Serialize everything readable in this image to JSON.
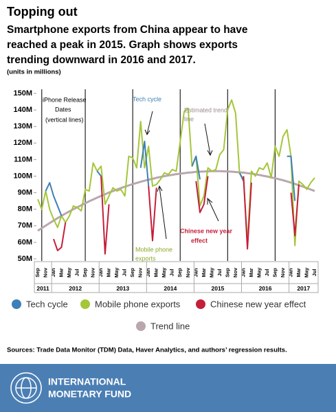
{
  "chart_data": {
    "type": "line",
    "title": "Topping out",
    "subtitle": [
      "Smartphone exports from China appear to have",
      "reached a peak in 2015. Graph shows exports",
      "trending downward in 2016 and 2017."
    ],
    "units_note": "(units in millions)",
    "categories": [
      "Sep",
      null,
      "Nov",
      null,
      "Jan",
      null,
      "Mar",
      null,
      "May",
      null,
      "Jul",
      null,
      "Sep",
      null,
      "Nov",
      null,
      "Jan",
      null,
      "Mar",
      null,
      "May",
      null,
      "Jul",
      null,
      "Sep",
      null,
      "Nov",
      null,
      "Jan",
      null,
      "Mar",
      null,
      "May",
      null,
      "Jul",
      null,
      "Sep",
      null,
      "Nov",
      null,
      "Jan",
      null,
      "Mar",
      null,
      "May",
      null,
      "Jul",
      null,
      "Sep",
      null,
      "Nov",
      null,
      "Jan",
      null,
      "Mar",
      null,
      "May",
      null,
      "Jul",
      null,
      "Sep",
      null,
      "Nov",
      null,
      "Jan",
      null,
      "Mar",
      null,
      "May",
      null,
      "Jul"
    ],
    "years": [
      "2011",
      "2012",
      "2013",
      "2014",
      "2015",
      "2016",
      "2017"
    ],
    "ylim": [
      50,
      150
    ],
    "yticks": [
      {
        "value": 50,
        "label": "50M"
      },
      {
        "value": 60,
        "label": "60M"
      },
      {
        "value": 70,
        "label": "70M"
      },
      {
        "value": 80,
        "label": "80M"
      },
      {
        "value": 90,
        "label": "90M"
      },
      {
        "value": 100,
        "label": "100M"
      },
      {
        "value": 110,
        "label": "110M"
      },
      {
        "value": 120,
        "label": "120M"
      },
      {
        "value": 130,
        "label": "130M"
      },
      {
        "value": 140,
        "label": "140M"
      },
      {
        "value": 150,
        "label": "150M"
      }
    ],
    "release_lines": [
      1,
      12,
      24,
      36,
      48,
      60
    ],
    "series": [
      {
        "name": "Tech cycle",
        "color": "#3d7fb8",
        "values": [
          null,
          null,
          91,
          96,
          88,
          82,
          76,
          null,
          null,
          null,
          null,
          null,
          null,
          null,
          null,
          103,
          100,
          null,
          null,
          null,
          null,
          null,
          null,
          null,
          null,
          null,
          105,
          121,
          94,
          null,
          null,
          null,
          null,
          null,
          null,
          null,
          null,
          null,
          null,
          106,
          112,
          98,
          null,
          null,
          null,
          null,
          null,
          null,
          null,
          null,
          null,
          102,
          97,
          null,
          null,
          null,
          null,
          null,
          null,
          null,
          null,
          null,
          null,
          112,
          112,
          85,
          null,
          null,
          null,
          null,
          null
        ]
      },
      {
        "name": "Mobile phone exports",
        "color": "#a4c639",
        "values": [
          86,
          80,
          91,
          80,
          74,
          69,
          76,
          72,
          76,
          82,
          81,
          79,
          92,
          91,
          108,
          103,
          106,
          83,
          88,
          93,
          91,
          92,
          88,
          112,
          111,
          105,
          133,
          105,
          118,
          94,
          95,
          98,
          102,
          101,
          104,
          103,
          121,
          139,
          141,
          106,
          112,
          82,
          88,
          105,
          103,
          104,
          113,
          116,
          140,
          146,
          138,
          102,
          98,
          60,
          103,
          100,
          105,
          104,
          108,
          99,
          118,
          112,
          124,
          128,
          112,
          58,
          97,
          95,
          92,
          96,
          99
        ]
      },
      {
        "name": "Chinese new year effect",
        "color": "#c41e3a",
        "values": [
          null,
          null,
          null,
          null,
          62,
          55,
          57,
          72,
          null,
          null,
          null,
          null,
          null,
          null,
          null,
          null,
          100,
          53,
          83,
          null,
          null,
          null,
          null,
          null,
          null,
          null,
          null,
          null,
          94,
          61,
          93,
          null,
          null,
          null,
          null,
          null,
          null,
          null,
          null,
          null,
          97,
          78,
          83,
          100,
          null,
          null,
          null,
          null,
          null,
          null,
          null,
          null,
          100,
          56,
          96,
          null,
          null,
          null,
          null,
          null,
          null,
          null,
          null,
          null,
          90,
          64,
          95,
          null,
          null,
          null,
          null
        ]
      },
      {
        "name": "Trend line",
        "color": "#b9a7ad",
        "values": [
          67,
          68.6,
          70.1,
          71.6,
          73.1,
          74.6,
          76,
          77.4,
          78.7,
          80,
          81.2,
          82.4,
          83.6,
          84.8,
          85.9,
          87,
          88,
          89,
          90.1,
          91,
          91.9,
          92.8,
          93.6,
          94.4,
          95.2,
          95.9,
          96.6,
          97.2,
          97.9,
          98.4,
          99,
          99.5,
          100,
          100.4,
          100.8,
          101.2,
          101.5,
          101.8,
          102.1,
          102.3,
          102.6,
          102.7,
          102.8,
          102.9,
          103,
          103,
          103,
          102.9,
          102.8,
          102.7,
          102.5,
          102.3,
          102.1,
          101.8,
          101.5,
          101.1,
          100.7,
          100.2,
          99.8,
          99.2,
          98.7,
          98.1,
          97.5,
          96.8,
          96.1,
          95.3,
          94.5,
          93.7,
          92.8,
          91.9,
          91
        ]
      }
    ],
    "draw_order": [
      3,
      1,
      0,
      2
    ],
    "annotations": [
      [
        "iPhone Release",
        "Dates",
        "(vertical lines)"
      ],
      [
        "Tech cycle"
      ],
      [
        "Estimated trend",
        "line"
      ],
      [
        "Mobile phone",
        "exports"
      ],
      [
        "Chinese new year",
        "effect"
      ]
    ],
    "source": "Sources: Trade Data Monitor (TDM) Data, Haver Analytics, and authors’ regression results.",
    "logo_text": [
      "INTERNATIONAL",
      "MONETARY FUND"
    ]
  }
}
